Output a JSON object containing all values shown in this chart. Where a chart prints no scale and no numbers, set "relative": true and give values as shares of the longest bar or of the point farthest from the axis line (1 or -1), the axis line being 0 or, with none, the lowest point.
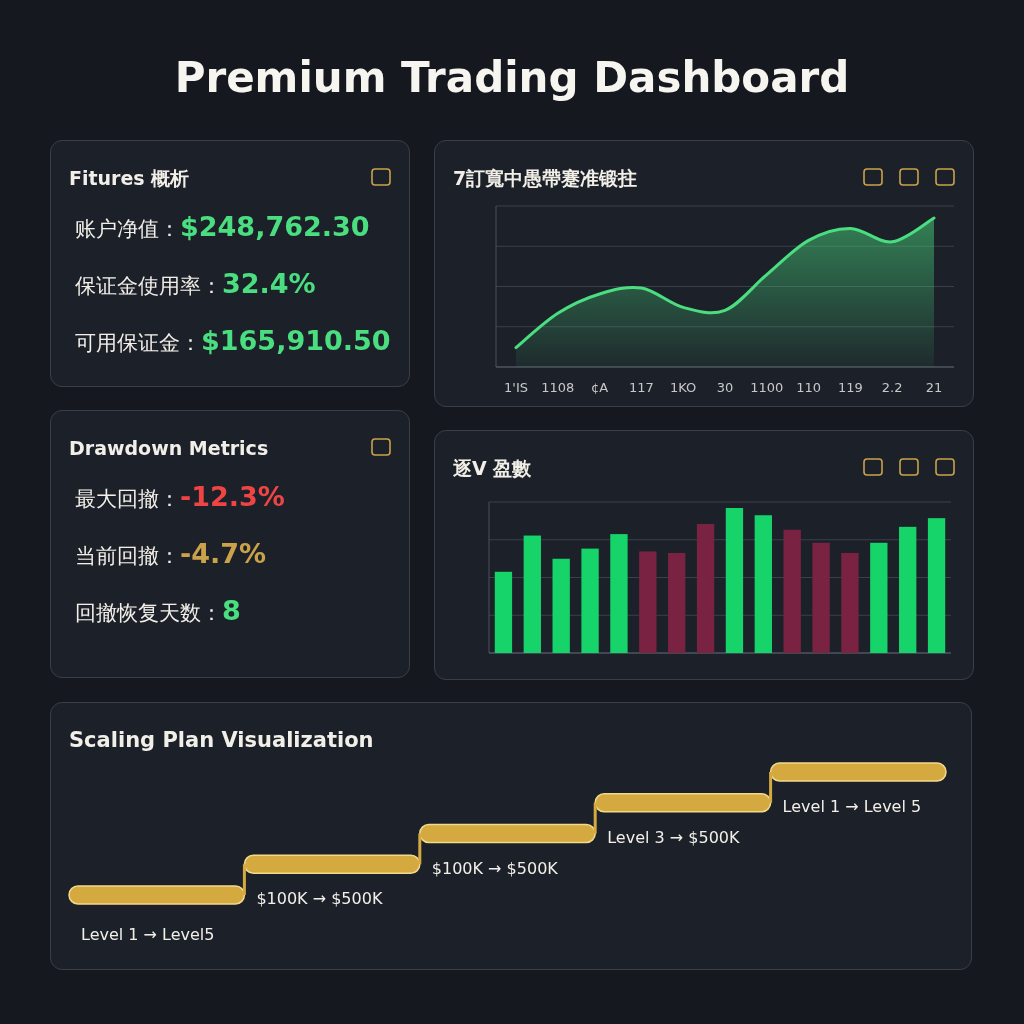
{
  "chart_data": [
    {
      "type": "other",
      "title": "Premium Trading Dashboard"
    },
    {
      "type": "other",
      "title": "Fitures 概析",
      "annotations": [
        "账户净值：$248,762.30",
        "保证金使用率：32.4%",
        "可用保证金：$165,910.50"
      ],
      "colors": [
        "#4ade80",
        "#4ade80",
        "#4ade80"
      ]
    },
    {
      "type": "area",
      "title": "7訂寬中愚帶蹇准锻拄",
      "relative": true,
      "grid": "y",
      "categories": [
        "1'IS",
        "1108",
        "¢A",
        "117",
        "1KO",
        "30",
        "1100",
        "110",
        "119",
        "2.2",
        "21"
      ],
      "values": [
        0.13,
        0.36,
        0.49,
        0.53,
        0.4,
        0.38,
        0.62,
        0.85,
        0.93,
        0.84,
        1
      ],
      "color": "#4ade80"
    },
    {
      "type": "other",
      "title": "Drawdown Metrics",
      "annotations": [
        "最大回撤：-12.3%",
        "当前回撤：-4.7%",
        "回撤恢复天数：8"
      ],
      "colors": [
        "#ef4444",
        "#c9a24a",
        "#4ade80"
      ]
    },
    {
      "type": "bar",
      "title": "逐V 盈數",
      "relative": true,
      "grid": "y",
      "categories": [
        null,
        null,
        null,
        null,
        null,
        null,
        null,
        null,
        null,
        null,
        null,
        null,
        null,
        null,
        null,
        null
      ],
      "values": [
        0.56,
        0.81,
        0.65,
        0.72,
        0.82,
        0.7,
        0.69,
        0.89,
        1,
        0.95,
        0.85,
        0.76,
        0.69,
        0.76,
        0.87,
        0.93
      ],
      "colors": [
        "#16d46a",
        "#16d46a",
        "#16d46a",
        "#16d46a",
        "#16d46a",
        "#7a2242",
        "#7a2242",
        "#7a2242",
        "#16d46a",
        "#16d46a",
        "#7a2242",
        "#7a2242",
        "#7a2242",
        "#16d46a",
        "#16d46a",
        "#16d46a"
      ]
    },
    {
      "type": "other",
      "title": "Scaling Plan Visualization",
      "annotations": [
        "Level 1 → Level5",
        "$100K → $500K",
        "$100K  → $500K",
        "Level 3 → $500K",
        "Level 1 → Level 5"
      ]
    }
  ]
}
